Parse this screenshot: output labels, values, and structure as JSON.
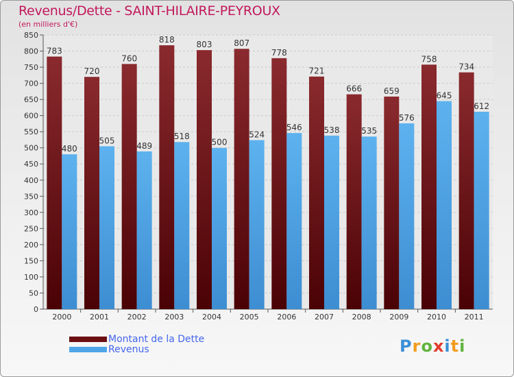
{
  "chart_data": {
    "type": "bar",
    "title": "Revenus/Dette - SAINT-HILAIRE-PEYROUX",
    "subtitle": "(en milliers d'€)",
    "categories": [
      "2000",
      "2001",
      "2002",
      "2003",
      "2004",
      "2005",
      "2006",
      "2007",
      "2008",
      "2009",
      "2010",
      "2011"
    ],
    "series": [
      {
        "name": "Montant de la Dette",
        "color": "#6b0f12",
        "values": [
          783,
          720,
          760,
          818,
          803,
          807,
          778,
          721,
          666,
          659,
          758,
          734
        ]
      },
      {
        "name": "Revenus",
        "color": "#4ea6e8",
        "values": [
          480,
          505,
          489,
          518,
          500,
          524,
          546,
          538,
          535,
          576,
          645,
          612
        ]
      }
    ],
    "yticks": [
      0,
      50,
      100,
      150,
      200,
      250,
      300,
      350,
      400,
      450,
      500,
      550,
      600,
      650,
      700,
      750,
      800,
      850
    ],
    "ylim": [
      0,
      850
    ],
    "grid": true
  },
  "logo": {
    "letters": [
      "P",
      "r",
      "o",
      "x",
      "i",
      "t",
      "i"
    ],
    "colors": [
      "#3b8fd6",
      "#f29b1d",
      "#5fb33d",
      "#e23a2c",
      "#3b8fd6",
      "#f29b1d",
      "#5fb33d"
    ]
  }
}
